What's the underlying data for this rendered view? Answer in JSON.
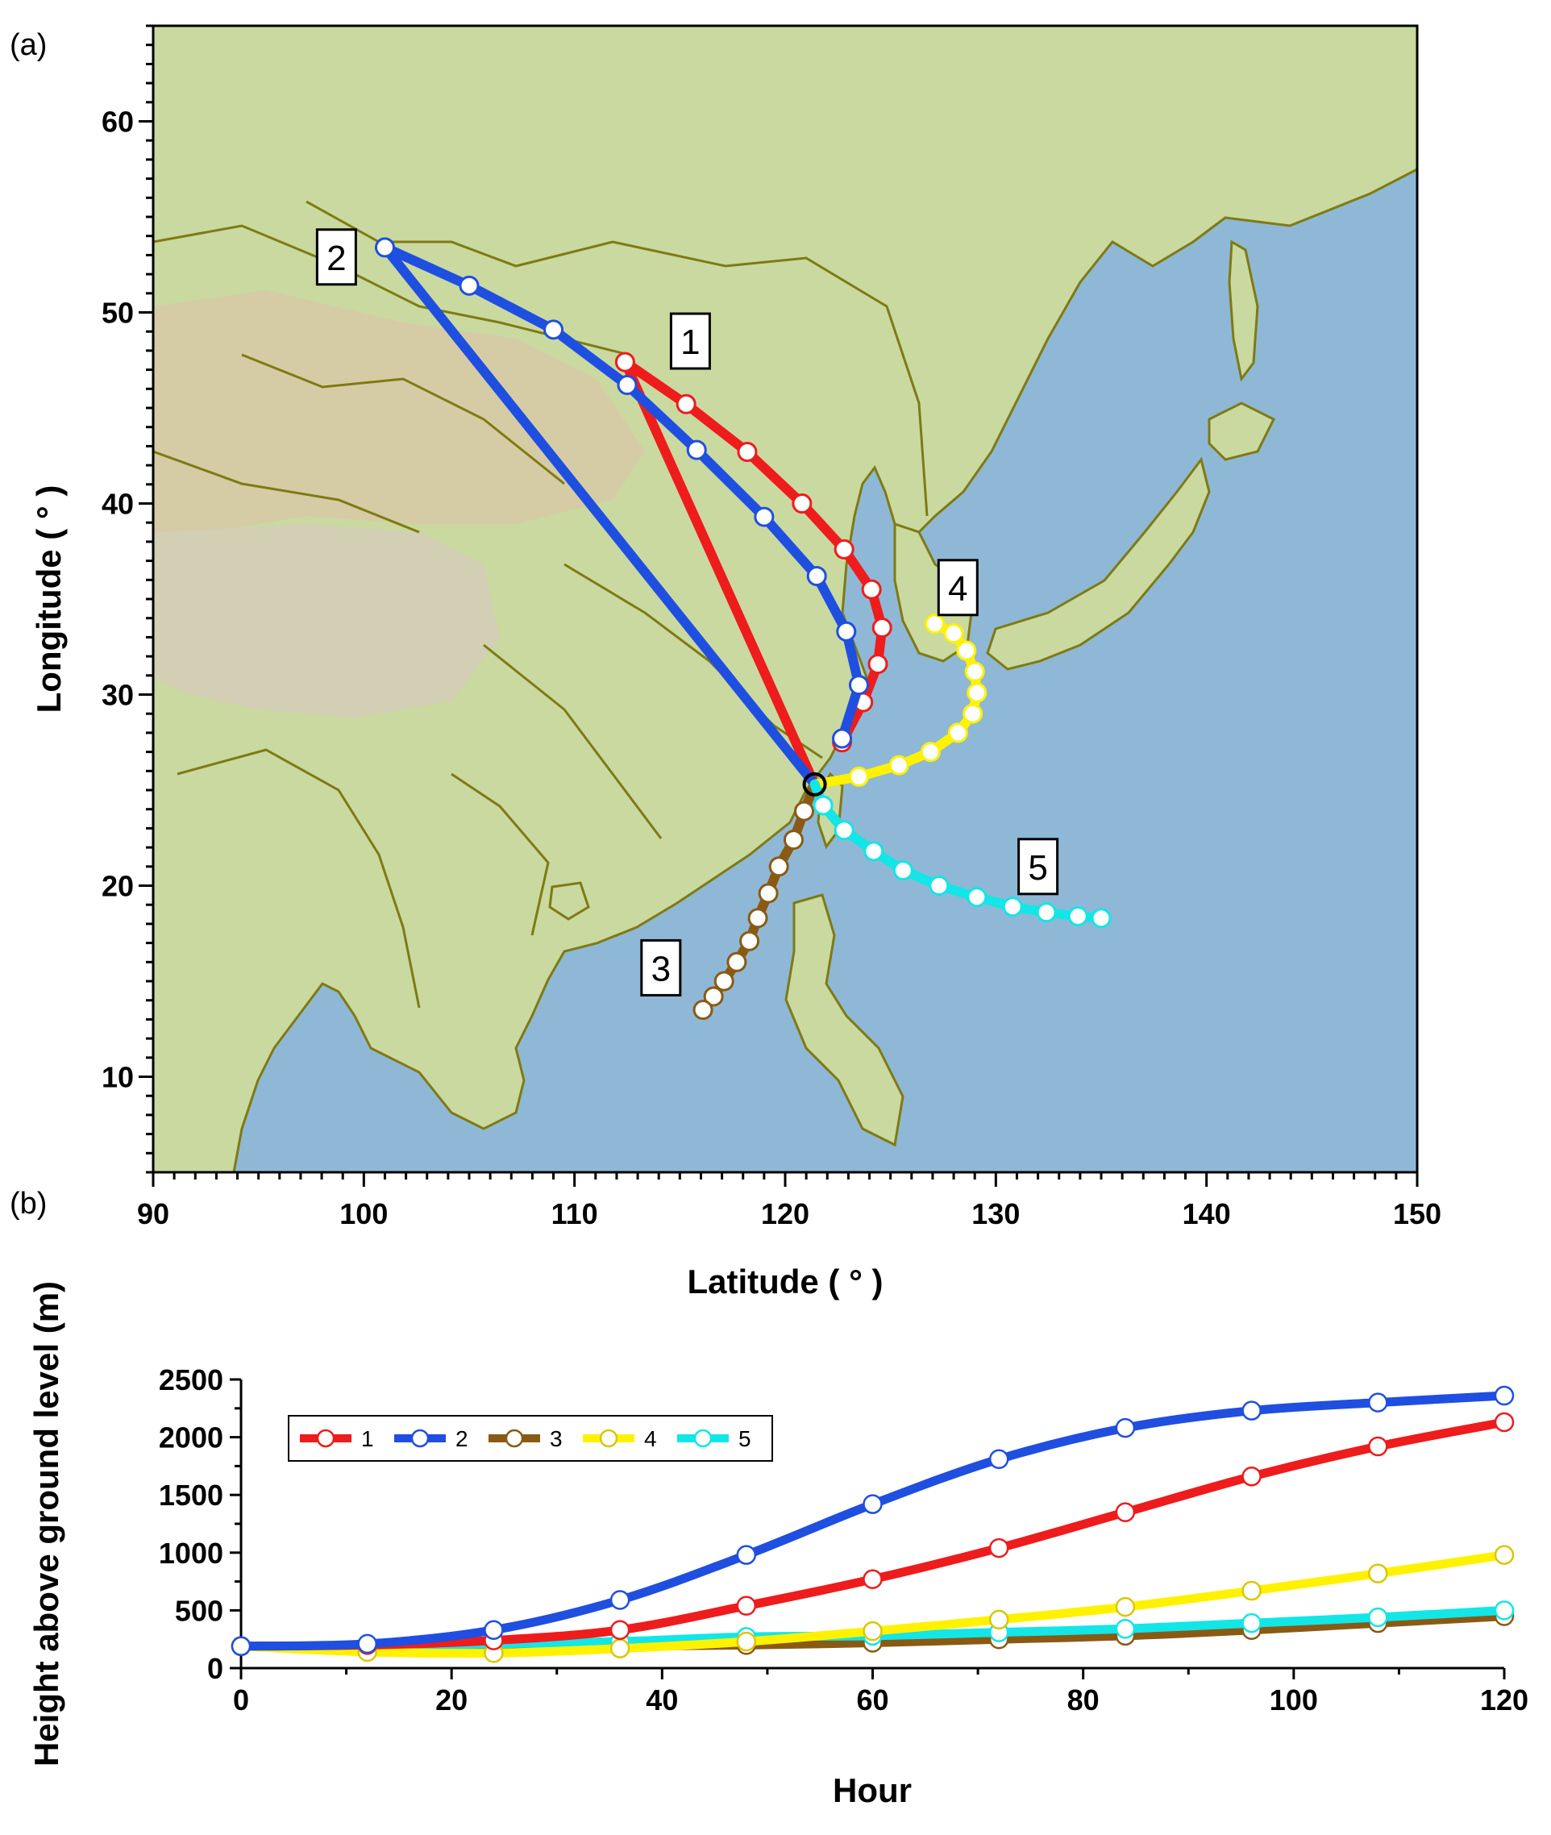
{
  "panels": {
    "a": "(a)",
    "b": "(b)"
  },
  "colors": {
    "ocean": "#8fb8d6",
    "land": "#c9d9a0",
    "border": "#7f7a12",
    "t1": "#ee1c1c",
    "t2": "#1f4fe0",
    "t3": "#8a5a14",
    "t4": "#fff200",
    "t5": "#12e6e6"
  },
  "chart_data": [
    {
      "type": "line",
      "panel": "a",
      "xlabel": "Latitude ( ° )",
      "ylabel": "Longitude ( ° )",
      "xlim": [
        90,
        150
      ],
      "ylim": [
        5,
        65
      ],
      "xticks": [
        90,
        100,
        110,
        120,
        130,
        140,
        150
      ],
      "yticks": [
        10,
        20,
        30,
        40,
        50,
        60
      ],
      "origin": [
        121.4,
        25.3
      ],
      "series": [
        {
          "name": "1",
          "label_pos": [
            115.5,
            48.5
          ],
          "x": [
            112.4,
            115.3,
            118.2,
            120.8,
            122.8,
            124.1,
            124.6,
            124.4,
            123.7,
            122.7
          ],
          "y": [
            47.4,
            45.2,
            42.7,
            40.0,
            37.6,
            35.5,
            33.5,
            31.6,
            29.6,
            27.5
          ]
        },
        {
          "name": "2",
          "label_pos": [
            98.7,
            52.9
          ],
          "x": [
            101.0,
            105.0,
            109.0,
            112.5,
            115.8,
            119.0,
            121.5,
            122.9,
            123.5,
            122.7
          ],
          "y": [
            53.4,
            51.4,
            49.1,
            46.2,
            42.8,
            39.3,
            36.2,
            33.3,
            30.5,
            27.7
          ]
        },
        {
          "name": "3",
          "label_pos": [
            114.1,
            15.7
          ],
          "x": [
            120.9,
            120.4,
            119.7,
            119.2,
            118.7,
            118.3,
            117.7,
            117.1,
            116.6,
            116.1
          ],
          "y": [
            23.9,
            22.4,
            21.0,
            19.6,
            18.3,
            17.1,
            16.0,
            15.0,
            14.2,
            13.5
          ]
        },
        {
          "name": "4",
          "label_pos": [
            128.2,
            35.6
          ],
          "x": [
            123.5,
            125.4,
            126.9,
            128.2,
            128.9,
            129.1,
            129.0,
            128.6,
            128.0,
            127.1
          ],
          "y": [
            25.7,
            26.3,
            27.0,
            28.0,
            29.0,
            30.1,
            31.2,
            32.3,
            33.2,
            33.7
          ]
        },
        {
          "name": "5",
          "label_pos": [
            132.0,
            21.0
          ],
          "x": [
            121.8,
            122.8,
            124.2,
            125.6,
            127.3,
            129.1,
            130.8,
            132.4,
            133.9,
            135.0
          ],
          "y": [
            24.2,
            22.9,
            21.8,
            20.8,
            20.0,
            19.4,
            18.9,
            18.6,
            18.4,
            18.3
          ]
        }
      ]
    },
    {
      "type": "line",
      "panel": "b",
      "xlabel": "Hour",
      "ylabel": "Height above ground level (m)",
      "xlim": [
        0,
        120
      ],
      "ylim": [
        0,
        2500
      ],
      "xticks": [
        0,
        20,
        40,
        60,
        80,
        100,
        120
      ],
      "yticks": [
        0,
        500,
        1000,
        1500,
        2000,
        2500
      ],
      "legend": "upper-left",
      "x": [
        0,
        12,
        24,
        36,
        48,
        60,
        72,
        84,
        96,
        108,
        120
      ],
      "series": [
        {
          "name": "1",
          "values": [
            190,
            200,
            240,
            330,
            540,
            770,
            1040,
            1350,
            1660,
            1920,
            2130
          ]
        },
        {
          "name": "2",
          "values": [
            190,
            210,
            330,
            590,
            980,
            1420,
            1810,
            2080,
            2230,
            2300,
            2360
          ]
        },
        {
          "name": "3",
          "values": [
            190,
            180,
            180,
            190,
            200,
            220,
            250,
            280,
            330,
            390,
            450
          ]
        },
        {
          "name": "4",
          "values": [
            190,
            140,
            130,
            170,
            230,
            320,
            420,
            530,
            670,
            820,
            980
          ]
        },
        {
          "name": "5",
          "values": [
            190,
            190,
            210,
            230,
            270,
            280,
            310,
            340,
            390,
            440,
            500
          ]
        }
      ]
    }
  ]
}
